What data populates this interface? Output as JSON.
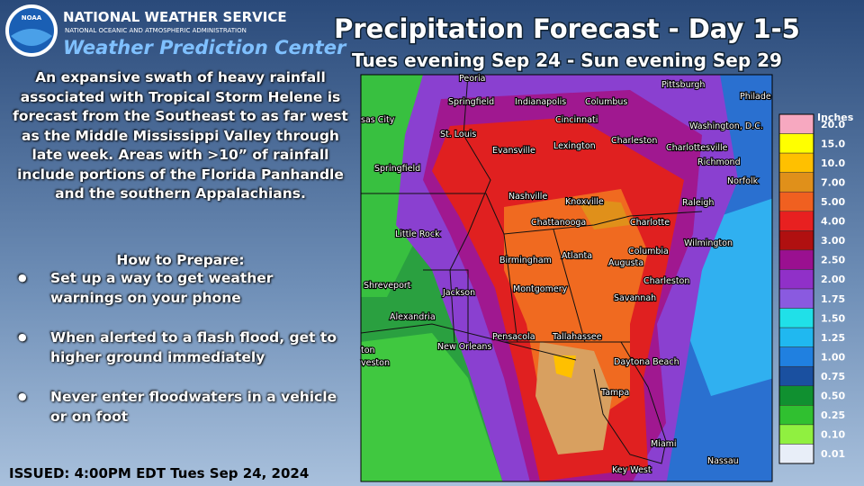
{
  "header": {
    "agency": "NATIONAL WEATHER SERVICE",
    "parent": "NATIONAL OCEANIC AND ATMOSPHERIC ADMINISTRATION",
    "center": "Weather Prediction Center",
    "logo": "NOAA"
  },
  "title": "Precipitation Forecast - Day 1-5",
  "subtitle": "Tues evening Sep 24 - Sun evening Sep 29",
  "description": "An expansive swath of heavy rainfall associated with Tropical Storm Helene is forecast from the Southeast to as far west as the Middle Mississippi Valley through late week. Areas with >10” of rainfall include portions of the Florida Panhandle and the southern Appalachians.",
  "prepare": {
    "heading": "How to Prepare:",
    "items": [
      "Set up a way to get weather warnings on your phone",
      "When alerted to a flash flood, get to higher ground immediately",
      "Never enter floodwaters in a vehicle or on foot"
    ]
  },
  "issued": "ISSUED: 4:00PM EDT Tues Sep 24, 2024",
  "legend": {
    "title": "Inches",
    "items": [
      {
        "label": "20.0",
        "color": "#f7a8c0"
      },
      {
        "label": "15.0",
        "color": "#ffff00"
      },
      {
        "label": "10.0",
        "color": "#ffc000"
      },
      {
        "label": "7.00",
        "color": "#e0901a"
      },
      {
        "label": "5.00",
        "color": "#f06020"
      },
      {
        "label": "4.00",
        "color": "#e82020"
      },
      {
        "label": "3.00",
        "color": "#b01010"
      },
      {
        "label": "2.50",
        "color": "#9a1090"
      },
      {
        "label": "2.00",
        "color": "#9030c8"
      },
      {
        "label": "1.75",
        "color": "#8a5ae0"
      },
      {
        "label": "1.50",
        "color": "#20e0e8"
      },
      {
        "label": "1.25",
        "color": "#20b8f0"
      },
      {
        "label": "1.00",
        "color": "#2080e0"
      },
      {
        "label": "0.75",
        "color": "#1a50a0"
      },
      {
        "label": "0.50",
        "color": "#109030"
      },
      {
        "label": "0.25",
        "color": "#30c030"
      },
      {
        "label": "0.10",
        "color": "#90f040"
      },
      {
        "label": "0.01",
        "color": "#e8eef8"
      }
    ]
  },
  "cities": [
    "Peoria",
    "Pittsburgh",
    "Philade",
    "Springfield",
    "Indianapolis",
    "Columbus",
    "Cincinnati",
    "sas City",
    "Washington, D.C.",
    "St. Louis",
    "Evansville",
    "Lexington",
    "Charleston",
    "Charlottesville",
    "Richmond",
    "Springfield",
    "Norfolk",
    "Nashville",
    "Knoxville",
    "Raleigh",
    "Chattanooga",
    "Charlotte",
    "Little Rock",
    "Wilmington",
    "Columbia",
    "Birmingham",
    "Atlanta",
    "Augusta",
    "Shreveport",
    "Charleston",
    "Montgomery",
    "Jackson",
    "Savannah",
    "Alexandria",
    "New Orleans",
    "Pensacola",
    "Tallahassee",
    "ton",
    "veston",
    "Daytona Beach",
    "Tampa",
    "Miami",
    "Key West",
    "Nassau"
  ]
}
